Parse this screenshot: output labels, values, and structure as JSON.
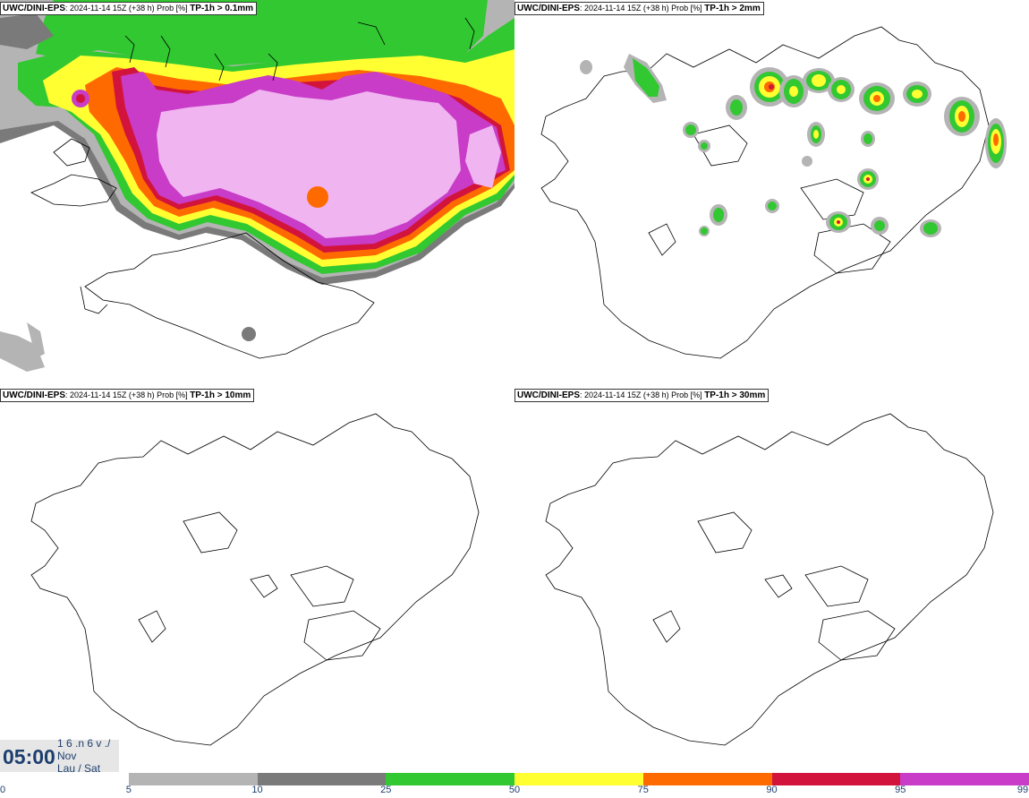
{
  "panels": [
    {
      "source": "UWC/DINI-EPS",
      "meta": ": 2024-11-14 15Z (+38 h) Prob [%]",
      "threshold": "TP-1h > 0.1mm"
    },
    {
      "source": "UWC/DINI-EPS",
      "meta": ": 2024-11-14 15Z (+38 h) Prob [%]",
      "threshold": "TP-1h > 2mm"
    },
    {
      "source": "UWC/DINI-EPS",
      "meta": ": 2024-11-14 15Z (+38 h) Prob [%]",
      "threshold": "TP-1h > 10mm"
    },
    {
      "source": "UWC/DINI-EPS",
      "meta": ": 2024-11-14 15Z (+38 h) Prob [%]",
      "threshold": "TP-1h > 30mm"
    }
  ],
  "time": {
    "clock": "05:00",
    "date_line": "1 6 .n 6 v ./",
    "month": "Nov",
    "weekday": "Lau / Sat"
  },
  "legend": {
    "ticks": [
      "0",
      "5",
      "10",
      "25",
      "50",
      "75",
      "90",
      "95",
      "99"
    ],
    "colors": [
      "#ffffff",
      "#b4b4b4",
      "#7a7a7a",
      "#31c831",
      "#ffff32",
      "#ff6a00",
      "#d2143c",
      "#c83cc8",
      "#f0b4f0"
    ]
  }
}
